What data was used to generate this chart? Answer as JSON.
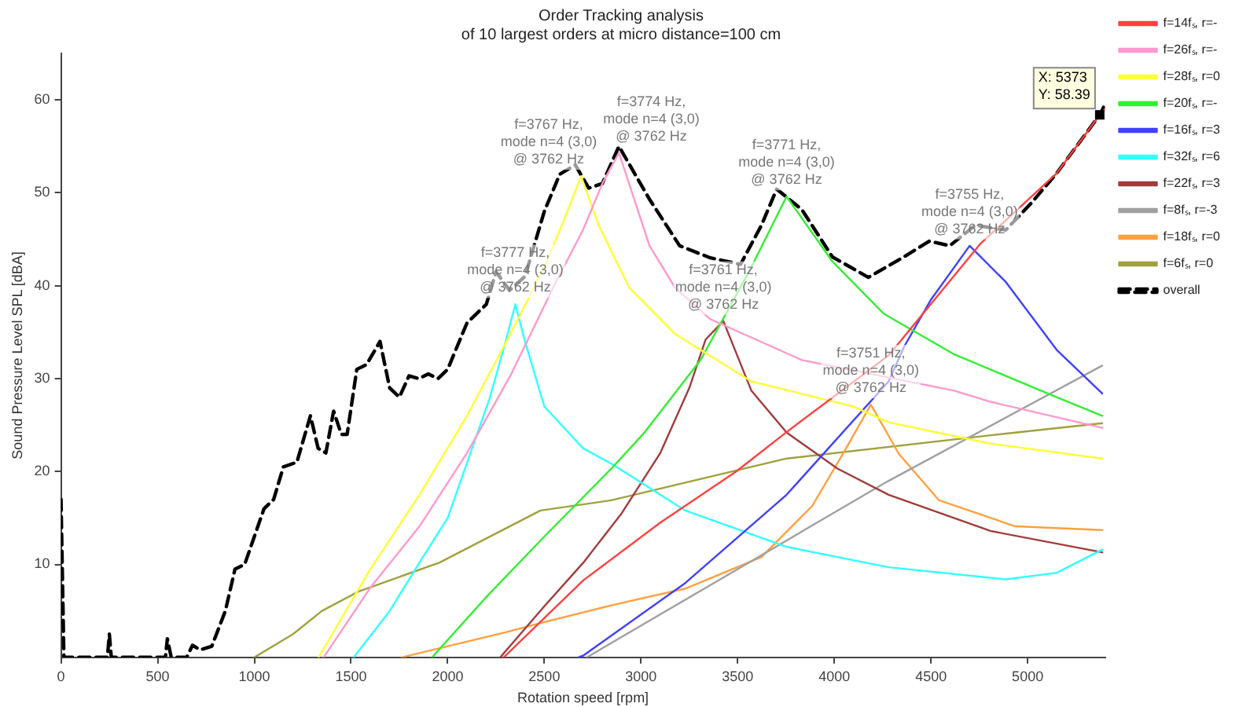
{
  "chart_data": {
    "type": "line",
    "title": "Order Tracking analysis",
    "subtitle": "of 10 largest orders at micro distance=100 cm",
    "xlabel": "Rotation speed [rpm]",
    "ylabel": "Sound Pressure Level SPL [dBA]",
    "xlim": [
      0,
      5400
    ],
    "xticks": [
      0,
      500,
      1000,
      1500,
      2000,
      2500,
      3000,
      3500,
      4000,
      4500,
      5000
    ],
    "ylim": [
      0,
      65
    ],
    "yticks": [
      10,
      20,
      30,
      40,
      50,
      60
    ],
    "legend": "top right",
    "marker": "none",
    "line_style": "solid",
    "series": [
      {
        "name": "f=14fₛ, r=-",
        "color": "#ff4040",
        "x": [
          2290,
          2702,
          3100,
          3492,
          3750,
          4281,
          4755,
          5150,
          5373,
          5400
        ],
        "values": [
          0,
          8.3,
          14.5,
          20,
          24.2,
          32.5,
          44.5,
          52.1,
          58.39,
          59
        ]
      },
      {
        "name": "f=26fₛ, r=-",
        "color": "#ff99cc",
        "x": [
          1358,
          1600,
          1854,
          2100,
          2324,
          2550,
          2700,
          2800,
          2886,
          3044,
          3176,
          3358,
          3832,
          4621,
          4808,
          5386
        ],
        "values": [
          0,
          7.5,
          14.1,
          22,
          30.3,
          40,
          46,
          51,
          54.3,
          44.3,
          39.8,
          36.4,
          32,
          28.7,
          27.5,
          24.7
        ]
      },
      {
        "name": "f=28fₛ, r=0",
        "color": "#ffff33",
        "x": [
          1332,
          1600,
          1854,
          2100,
          2324,
          2500,
          2600,
          2690,
          2781,
          2939,
          3176,
          3571,
          4097,
          4281,
          4808,
          5386
        ],
        "values": [
          0,
          9.5,
          17.5,
          26,
          34.8,
          42,
          47,
          51.8,
          46.5,
          39.8,
          34.8,
          29.7,
          27,
          25.3,
          23,
          21.4
        ]
      },
      {
        "name": "f=20fₛ, r=-",
        "color": "#33ee33",
        "x": [
          1919,
          2200,
          2500,
          2846,
          3018,
          3308,
          3571,
          3753,
          3990,
          4255,
          4621,
          5150,
          5386
        ],
        "values": [
          0,
          6.5,
          13,
          20.3,
          24.2,
          32,
          42,
          49.6,
          42.6,
          37,
          32.6,
          28,
          26
        ]
      },
      {
        "name": "f=16fₛ, r=3",
        "color": "#4040ff",
        "x": [
          2676,
          2702,
          3229,
          3753,
          4281,
          4360,
          4500,
          4700,
          4887,
          5150,
          5386
        ],
        "values": [
          0,
          0.2,
          8,
          17.5,
          29.7,
          33.4,
          38.5,
          44.3,
          40.4,
          33.1,
          28.4
        ]
      },
      {
        "name": "f=32fₛ, r=6",
        "color": "#33ffff",
        "x": [
          1514,
          1700,
          1854,
          2000,
          2219,
          2300,
          2350,
          2400,
          2500,
          2700,
          2850,
          3229,
          3753,
          4281,
          4887,
          5150,
          5386
        ],
        "values": [
          0,
          5,
          10.2,
          15,
          28,
          34,
          38,
          34,
          27,
          22.5,
          20.8,
          15.8,
          11.9,
          9.7,
          8.4,
          9.1,
          11.6
        ]
      },
      {
        "name": "f=22fₛ, r=3",
        "color": "#a03c3c",
        "x": [
          2272,
          2500,
          2702,
          2900,
          3100,
          3250,
          3334,
          3426,
          3571,
          3753,
          4018,
          4281,
          4808,
          5386
        ],
        "values": [
          0,
          5.5,
          10.2,
          15.5,
          22,
          29,
          34.2,
          36.2,
          28.7,
          24.2,
          20.3,
          17.5,
          13.6,
          11.3
        ]
      },
      {
        "name": "f=8fₛ, r=-3",
        "color": "#a0a0a0",
        "x": [
          2720,
          3500,
          4281,
          5386
        ],
        "values": [
          0,
          9.5,
          19,
          31.4
        ]
      },
      {
        "name": "f=18fₛ, r=0",
        "color": "#ffa040",
        "x": [
          1762,
          2000,
          2300,
          2500,
          2846,
          3229,
          3623,
          3886,
          4044,
          4189,
          4334,
          4542,
          4937,
          5386
        ],
        "values": [
          0,
          1.2,
          2.7,
          3.8,
          5.6,
          7.4,
          10.8,
          16.3,
          21.9,
          27.2,
          21.9,
          16.9,
          14.1,
          13.7
        ]
      },
      {
        "name": "f=6fₛ, r=0",
        "color": "#a0a040",
        "x": [
          1000,
          1200,
          1350,
          1540,
          1958,
          2480,
          2846,
          3753,
          4808,
          5386
        ],
        "values": [
          0,
          2.5,
          5,
          7.1,
          10.2,
          15.8,
          16.9,
          21.4,
          23.9,
          25.2
        ]
      },
      {
        "name": "overall",
        "color": "#000000",
        "line_style": "dashed",
        "x": [
          0,
          15,
          240,
          250,
          260,
          540,
          550,
          570,
          650,
          680,
          720,
          780,
          850,
          900,
          950,
          1000,
          1050,
          1100,
          1150,
          1220,
          1290,
          1330,
          1370,
          1410,
          1450,
          1480,
          1530,
          1580,
          1650,
          1700,
          1750,
          1800,
          1850,
          1900,
          1950,
          2000,
          2100,
          2200,
          2250,
          2320,
          2400,
          2500,
          2580,
          2660,
          2730,
          2800,
          2886,
          3044,
          3200,
          3358,
          3515,
          3623,
          3702,
          3832,
          3990,
          4176,
          4360,
          4492,
          4597,
          4729,
          4887,
          5015,
          5150,
          5373,
          5400
        ],
        "values": [
          17,
          0,
          0,
          2.5,
          0,
          0,
          2,
          0,
          0,
          1.3,
          0.8,
          1.2,
          5,
          9.5,
          10,
          13,
          16,
          17,
          20.5,
          21,
          26,
          22.5,
          22,
          26.5,
          24,
          24,
          31,
          31.5,
          34,
          29,
          28,
          30.3,
          30,
          30.5,
          30,
          31,
          36,
          38,
          41.5,
          39.5,
          41,
          48,
          52,
          53,
          50.5,
          51,
          55,
          49.3,
          44.3,
          43,
          42.3,
          46.5,
          50.4,
          48.2,
          43.1,
          40.9,
          43.1,
          44.8,
          44.3,
          46.5,
          46,
          48.8,
          52.1,
          58.39,
          59.5
        ]
      }
    ],
    "annotations": [
      {
        "text": "f=3777 Hz,\nmode n=4 (3,0)\n@ 3762 Hz",
        "x": 2350,
        "y": 38
      },
      {
        "text": "f=3767 Hz,\nmode n=4 (3,0)\n@ 3762 Hz",
        "x": 2690,
        "y": 51.8
      },
      {
        "text": "f=3774 Hz,\nmode n=4 (3,0)\n@ 3762 Hz",
        "x": 2886,
        "y": 54.3
      },
      {
        "text": "f=3761 Hz,\nmode n=4 (3,0)\n@ 3762 Hz",
        "x": 3426,
        "y": 36.2
      },
      {
        "text": "f=3771 Hz,\nmode n=4 (3,0)\n@ 3762 Hz",
        "x": 3753,
        "y": 49.6
      },
      {
        "text": "f=3751 Hz,\nmode n=4 (3,0)\n@ 3762 Hz",
        "x": 4189,
        "y": 27.2
      },
      {
        "text": "f=3755 Hz,\nmode n=4 (3,0)\n@ 3762 Hz",
        "x": 4700,
        "y": 44.3
      },
      {
        "text": "X: 5373\nY: 58.39",
        "x": 5373,
        "y": 58.39
      }
    ]
  }
}
